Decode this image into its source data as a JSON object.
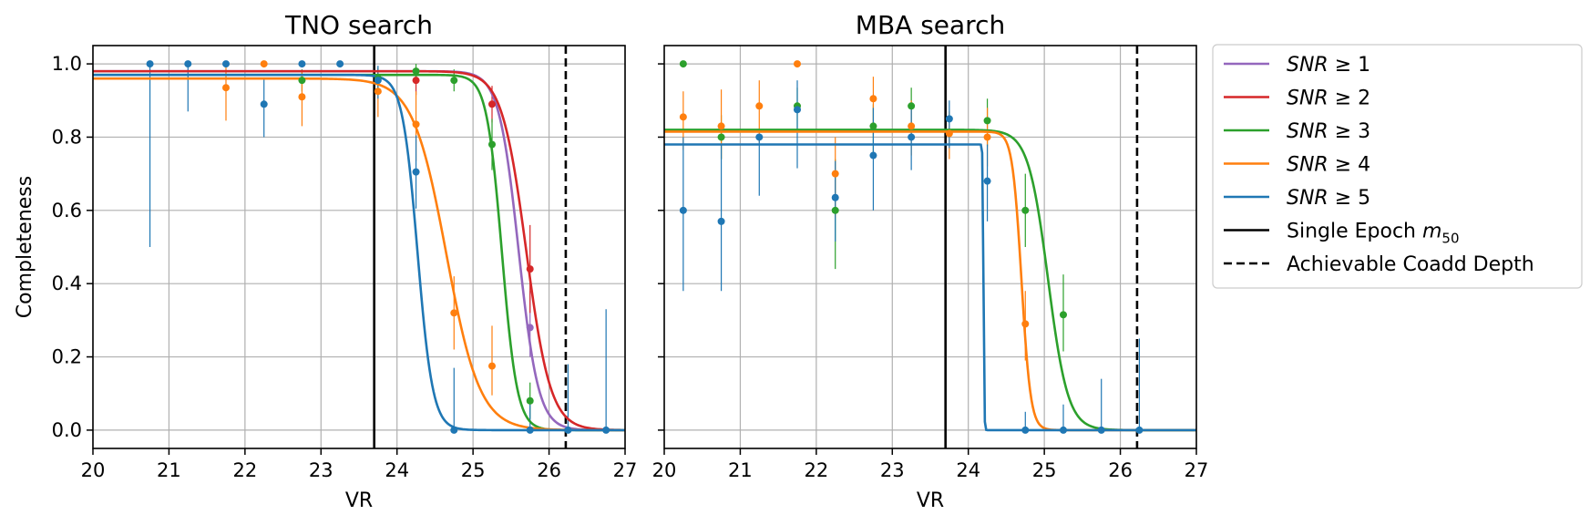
{
  "chart_data": [
    {
      "type": "line",
      "title": "TNO search",
      "xlabel": "VR",
      "ylabel": "Completeness",
      "xlim": [
        20,
        27
      ],
      "ylim": [
        -0.05,
        1.05
      ],
      "xticks": [
        "20",
        "21",
        "22",
        "23",
        "24",
        "25",
        "26",
        "27"
      ],
      "yticks": [
        "0.0",
        "0.2",
        "0.4",
        "0.6",
        "0.8",
        "1.0"
      ],
      "grid": true,
      "vlines": [
        {
          "label": "Single Epoch m50",
          "x": 23.7,
          "style": "solid"
        },
        {
          "label": "Achievable Coadd Depth",
          "x": 26.22,
          "style": "dashed"
        }
      ],
      "series": [
        {
          "name": "SNR ≥ 1",
          "color": "#9467bd",
          "curve": {
            "plateau": 0.98,
            "m50": 25.6,
            "width": 0.13
          },
          "points": [
            [
              25.75,
              0.28,
              0.08,
              0.1
            ]
          ]
        },
        {
          "name": "SNR ≥ 2",
          "color": "#d62728",
          "curve": {
            "plateau": 0.98,
            "m50": 25.7,
            "width": 0.16
          },
          "points": [
            [
              24.25,
              0.955,
              0.04,
              0.03
            ],
            [
              25.25,
              0.89,
              0.05,
              0.05
            ],
            [
              25.75,
              0.44,
              0.12,
              0.12
            ]
          ]
        },
        {
          "name": "SNR ≥ 3",
          "color": "#2ca02c",
          "curve": {
            "plateau": 0.97,
            "m50": 25.38,
            "width": 0.1
          },
          "points": [
            [
              22.75,
              0.955,
              0.03,
              0.03
            ],
            [
              23.75,
              0.96,
              0.03,
              0.03
            ],
            [
              24.25,
              0.98,
              0.02,
              0.02
            ],
            [
              24.75,
              0.955,
              0.03,
              0.03
            ],
            [
              25.25,
              0.78,
              0.07,
              0.07
            ],
            [
              25.75,
              0.08,
              0.05,
              0.05
            ]
          ]
        },
        {
          "name": "SNR ≥ 4",
          "color": "#ff7f0e",
          "curve": {
            "plateau": 0.96,
            "m50": 24.65,
            "width": 0.22
          },
          "points": [
            [
              21.75,
              0.935,
              0.09,
              0.06
            ],
            [
              22.25,
              1.0,
              0.0,
              0.0
            ],
            [
              22.75,
              0.91,
              0.08,
              0.07
            ],
            [
              23.75,
              0.925,
              0.07,
              0.06
            ],
            [
              24.25,
              0.835,
              0.1,
              0.09
            ],
            [
              24.75,
              0.32,
              0.1,
              0.1
            ],
            [
              25.25,
              0.175,
              0.08,
              0.11
            ]
          ]
        },
        {
          "name": "SNR ≥ 5",
          "color": "#1f77b4",
          "curve": {
            "plateau": 0.97,
            "m50": 24.27,
            "width": 0.1
          },
          "points": [
            [
              20.75,
              1.0,
              0.5,
              0.0
            ],
            [
              21.25,
              1.0,
              0.13,
              0.0
            ],
            [
              21.75,
              1.0,
              0.0,
              0.0
            ],
            [
              22.25,
              0.89,
              0.09,
              0.07
            ],
            [
              22.75,
              1.0,
              0.0,
              0.0
            ],
            [
              23.25,
              1.0,
              0.0,
              0.0
            ],
            [
              23.75,
              0.955,
              0.05,
              0.04
            ],
            [
              24.25,
              0.705,
              0.1,
              0.1
            ],
            [
              24.75,
              0.0,
              0.0,
              0.17
            ],
            [
              25.75,
              0.0,
              0.0,
              0.07
            ],
            [
              26.25,
              0.0,
              0.0,
              0.18
            ],
            [
              26.75,
              0.0,
              0.0,
              0.33
            ]
          ]
        }
      ]
    },
    {
      "type": "line",
      "title": "MBA search",
      "xlabel": "VR",
      "ylabel": "",
      "xlim": [
        20,
        27
      ],
      "ylim": [
        -0.05,
        1.05
      ],
      "xticks": [
        "20",
        "21",
        "22",
        "23",
        "24",
        "25",
        "26",
        "27"
      ],
      "yticks": [
        "0.0",
        "0.2",
        "0.4",
        "0.6",
        "0.8",
        "1.0"
      ],
      "grid": true,
      "vlines": [
        {
          "label": "Single Epoch m50",
          "x": 23.7,
          "style": "solid"
        },
        {
          "label": "Achievable Coadd Depth",
          "x": 26.22,
          "style": "dashed"
        }
      ],
      "series": [
        {
          "name": "SNR ≥ 3",
          "color": "#2ca02c",
          "curve": {
            "plateau": 0.82,
            "m50": 25.05,
            "width": 0.13
          },
          "points": [
            [
              20.25,
              1.0,
              0.0,
              0.0
            ],
            [
              20.75,
              0.8,
              0.06,
              0.06
            ],
            [
              21.75,
              0.885,
              0.07,
              0.05
            ],
            [
              22.25,
              0.6,
              0.16,
              0.14
            ],
            [
              22.75,
              0.83,
              0.07,
              0.06
            ],
            [
              23.25,
              0.885,
              0.07,
              0.05
            ],
            [
              24.25,
              0.845,
              0.07,
              0.06
            ],
            [
              24.75,
              0.6,
              0.1,
              0.1
            ],
            [
              25.25,
              0.315,
              0.1,
              0.11
            ]
          ]
        },
        {
          "name": "SNR ≥ 4",
          "color": "#ff7f0e",
          "curve": {
            "plateau": 0.815,
            "m50": 24.7,
            "width": 0.06
          },
          "points": [
            [
              20.25,
              0.855,
              0.09,
              0.07
            ],
            [
              20.75,
              0.83,
              0.09,
              0.1
            ],
            [
              21.25,
              0.885,
              0.1,
              0.07
            ],
            [
              21.75,
              1.0,
              0.0,
              0.0
            ],
            [
              22.25,
              0.7,
              0.12,
              0.1
            ],
            [
              22.75,
              0.905,
              0.1,
              0.06
            ],
            [
              23.25,
              0.83,
              0.08,
              0.07
            ],
            [
              23.75,
              0.81,
              0.07,
              0.06
            ],
            [
              24.25,
              0.8,
              0.08,
              0.08
            ],
            [
              24.75,
              0.29,
              0.1,
              0.09
            ]
          ]
        },
        {
          "name": "SNR ≥ 5",
          "color": "#1f77b4",
          "curve": {
            "plateau": 0.78,
            "m50": 24.2,
            "width": 0.005
          },
          "points": [
            [
              20.25,
              0.6,
              0.22,
              0.2
            ],
            [
              20.75,
              0.57,
              0.19,
              0.21
            ],
            [
              21.25,
              0.8,
              0.16,
              0.0
            ],
            [
              21.75,
              0.875,
              0.16,
              0.08
            ],
            [
              22.25,
              0.635,
              0.12,
              0.1
            ],
            [
              22.75,
              0.75,
              0.15,
              0.13
            ],
            [
              23.25,
              0.8,
              0.09,
              0.08
            ],
            [
              23.75,
              0.85,
              0.08,
              0.05
            ],
            [
              24.25,
              0.68,
              0.11,
              0.1
            ],
            [
              24.75,
              0.0,
              0.0,
              0.05
            ],
            [
              25.25,
              0.0,
              0.0,
              0.07
            ],
            [
              25.75,
              0.0,
              0.0,
              0.14
            ],
            [
              26.25,
              0.0,
              0.0,
              0.25
            ]
          ]
        }
      ]
    }
  ],
  "legend": {
    "placement": "outside-right-top",
    "items": [
      {
        "kind": "series",
        "prefix": "SNR",
        "suffix": " ≥ 1",
        "color": "#9467bd"
      },
      {
        "kind": "series",
        "prefix": "SNR",
        "suffix": " ≥ 2",
        "color": "#d62728"
      },
      {
        "kind": "series",
        "prefix": "SNR",
        "suffix": " ≥ 3",
        "color": "#2ca02c"
      },
      {
        "kind": "series",
        "prefix": "SNR",
        "suffix": " ≥ 4",
        "color": "#ff7f0e"
      },
      {
        "kind": "series",
        "prefix": "SNR",
        "suffix": " ≥ 5",
        "color": "#1f77b4"
      },
      {
        "kind": "vline",
        "text": "Single Epoch ",
        "math": "m",
        "sub": "50",
        "color": "#000000",
        "style": "solid"
      },
      {
        "kind": "vline",
        "text": "Achievable Coadd Depth",
        "color": "#000000",
        "style": "dashed"
      }
    ]
  }
}
